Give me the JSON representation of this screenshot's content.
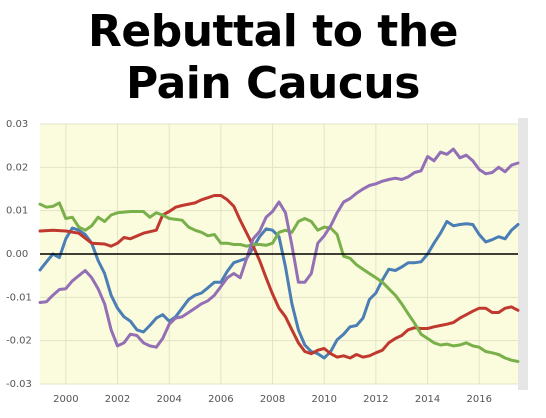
{
  "title_lines": [
    "Rebuttal to the",
    "Pain Caucus"
  ],
  "colors": {
    "plot_bg": "#fbfbdd",
    "grid": "#e3e3c8",
    "zero_line": "#000000",
    "right_bar": "#e6e6e6"
  },
  "chart_data": {
    "type": "line",
    "title": "Rebuttal to the Pain Caucus",
    "xlabel": "",
    "ylabel": "",
    "xlim": [
      1999.0,
      2017.5
    ],
    "ylim": [
      -0.03,
      0.03
    ],
    "x_ticks": [
      2000,
      2002,
      2004,
      2006,
      2008,
      2010,
      2012,
      2014,
      2016
    ],
    "y_ticks": [
      -0.03,
      -0.02,
      -0.01,
      0.0,
      0.01,
      0.02,
      0.03
    ],
    "y_tick_labels": [
      "-0.03",
      "-0.02",
      "-0.01",
      "0.00",
      "0.01",
      "0.02",
      "0.03"
    ],
    "zero_line": true,
    "grid": true,
    "series": [
      {
        "color": "#4a7eb5",
        "points": [
          [
            1999.0,
            -0.0037
          ],
          [
            1999.25,
            -0.0018
          ],
          [
            1999.5,
            0.0
          ],
          [
            1999.75,
            -0.0008
          ],
          [
            2000.0,
            0.0035
          ],
          [
            2000.25,
            0.006
          ],
          [
            2000.5,
            0.0055
          ],
          [
            2000.75,
            0.0045
          ],
          [
            2001.0,
            0.0025
          ],
          [
            2001.25,
            -0.0015
          ],
          [
            2001.5,
            -0.0045
          ],
          [
            2001.75,
            -0.0095
          ],
          [
            2002.0,
            -0.0125
          ],
          [
            2002.25,
            -0.0145
          ],
          [
            2002.5,
            -0.0155
          ],
          [
            2002.75,
            -0.0175
          ],
          [
            2003.0,
            -0.018
          ],
          [
            2003.25,
            -0.0165
          ],
          [
            2003.5,
            -0.0148
          ],
          [
            2003.75,
            -0.014
          ],
          [
            2004.0,
            -0.0155
          ],
          [
            2004.25,
            -0.0145
          ],
          [
            2004.5,
            -0.0125
          ],
          [
            2004.75,
            -0.0105
          ],
          [
            2005.0,
            -0.0095
          ],
          [
            2005.25,
            -0.009
          ],
          [
            2005.5,
            -0.0078
          ],
          [
            2005.75,
            -0.0065
          ],
          [
            2006.0,
            -0.0065
          ],
          [
            2006.25,
            -0.004
          ],
          [
            2006.5,
            -0.002
          ],
          [
            2006.75,
            -0.0015
          ],
          [
            2007.0,
            -0.001
          ],
          [
            2007.25,
            0.0015
          ],
          [
            2007.5,
            0.004
          ],
          [
            2007.75,
            0.0058
          ],
          [
            2008.0,
            0.0055
          ],
          [
            2008.25,
            0.004
          ],
          [
            2008.5,
            -0.003
          ],
          [
            2008.75,
            -0.0115
          ],
          [
            2009.0,
            -0.0175
          ],
          [
            2009.25,
            -0.021
          ],
          [
            2009.5,
            -0.0225
          ],
          [
            2009.75,
            -0.023
          ],
          [
            2010.0,
            -0.024
          ],
          [
            2010.25,
            -0.0225
          ],
          [
            2010.5,
            -0.0198
          ],
          [
            2010.75,
            -0.0185
          ],
          [
            2011.0,
            -0.0168
          ],
          [
            2011.25,
            -0.0165
          ],
          [
            2011.5,
            -0.0148
          ],
          [
            2011.75,
            -0.0105
          ],
          [
            2012.0,
            -0.009
          ],
          [
            2012.25,
            -0.006
          ],
          [
            2012.5,
            -0.0035
          ],
          [
            2012.75,
            -0.0038
          ],
          [
            2013.0,
            -0.003
          ],
          [
            2013.25,
            -0.002
          ],
          [
            2013.5,
            -0.002
          ],
          [
            2013.75,
            -0.0018
          ],
          [
            2014.0,
            0.0
          ],
          [
            2014.25,
            0.0025
          ],
          [
            2014.5,
            0.0048
          ],
          [
            2014.75,
            0.0075
          ],
          [
            2015.0,
            0.0065
          ],
          [
            2015.25,
            0.0068
          ],
          [
            2015.5,
            0.007
          ],
          [
            2015.75,
            0.0068
          ],
          [
            2016.0,
            0.0045
          ],
          [
            2016.25,
            0.0028
          ],
          [
            2016.5,
            0.0033
          ],
          [
            2016.75,
            0.004
          ],
          [
            2017.0,
            0.0035
          ],
          [
            2017.25,
            0.0055
          ],
          [
            2017.5,
            0.0068
          ]
        ]
      },
      {
        "color": "#c0392f",
        "points": [
          [
            1999.0,
            0.0053
          ],
          [
            1999.5,
            0.0055
          ],
          [
            2000.0,
            0.0053
          ],
          [
            2000.5,
            0.0048
          ],
          [
            2001.0,
            0.0025
          ],
          [
            2001.5,
            0.0023
          ],
          [
            2001.75,
            0.0018
          ],
          [
            2002.0,
            0.0025
          ],
          [
            2002.25,
            0.0038
          ],
          [
            2002.5,
            0.0035
          ],
          [
            2003.0,
            0.0048
          ],
          [
            2003.5,
            0.0055
          ],
          [
            2003.75,
            0.009
          ],
          [
            2004.0,
            0.0098
          ],
          [
            2004.25,
            0.0108
          ],
          [
            2004.5,
            0.0112
          ],
          [
            2005.0,
            0.0118
          ],
          [
            2005.25,
            0.0125
          ],
          [
            2005.5,
            0.013
          ],
          [
            2005.75,
            0.0135
          ],
          [
            2006.0,
            0.0135
          ],
          [
            2006.25,
            0.0125
          ],
          [
            2006.5,
            0.011
          ],
          [
            2006.75,
            0.0078
          ],
          [
            2007.0,
            0.0048
          ],
          [
            2007.25,
            0.0018
          ],
          [
            2007.5,
            -0.0015
          ],
          [
            2007.75,
            -0.0055
          ],
          [
            2008.0,
            -0.0092
          ],
          [
            2008.25,
            -0.0125
          ],
          [
            2008.5,
            -0.0145
          ],
          [
            2008.75,
            -0.0175
          ],
          [
            2009.0,
            -0.0205
          ],
          [
            2009.25,
            -0.0225
          ],
          [
            2009.5,
            -0.023
          ],
          [
            2009.75,
            -0.0222
          ],
          [
            2010.0,
            -0.0218
          ],
          [
            2010.25,
            -0.023
          ],
          [
            2010.5,
            -0.0238
          ],
          [
            2010.75,
            -0.0235
          ],
          [
            2011.0,
            -0.024
          ],
          [
            2011.25,
            -0.0232
          ],
          [
            2011.5,
            -0.0238
          ],
          [
            2011.75,
            -0.0235
          ],
          [
            2012.0,
            -0.0228
          ],
          [
            2012.25,
            -0.0222
          ],
          [
            2012.5,
            -0.0205
          ],
          [
            2012.75,
            -0.0195
          ],
          [
            2013.0,
            -0.0188
          ],
          [
            2013.25,
            -0.0175
          ],
          [
            2013.5,
            -0.017
          ],
          [
            2013.75,
            -0.0172
          ],
          [
            2014.0,
            -0.0172
          ],
          [
            2014.25,
            -0.0168
          ],
          [
            2014.5,
            -0.0165
          ],
          [
            2014.75,
            -0.0162
          ],
          [
            2015.0,
            -0.0158
          ],
          [
            2015.25,
            -0.0148
          ],
          [
            2015.5,
            -0.014
          ],
          [
            2015.75,
            -0.0132
          ],
          [
            2016.0,
            -0.0125
          ],
          [
            2016.25,
            -0.0125
          ],
          [
            2016.5,
            -0.0135
          ],
          [
            2016.75,
            -0.0135
          ],
          [
            2017.0,
            -0.0125
          ],
          [
            2017.25,
            -0.0122
          ],
          [
            2017.5,
            -0.013
          ]
        ]
      },
      {
        "color": "#79b04a",
        "points": [
          [
            1999.0,
            0.0115
          ],
          [
            1999.25,
            0.0108
          ],
          [
            1999.5,
            0.011
          ],
          [
            1999.75,
            0.0118
          ],
          [
            2000.0,
            0.0082
          ],
          [
            2000.25,
            0.0085
          ],
          [
            2000.5,
            0.0062
          ],
          [
            2000.75,
            0.0055
          ],
          [
            2001.0,
            0.0065
          ],
          [
            2001.25,
            0.0085
          ],
          [
            2001.5,
            0.0075
          ],
          [
            2001.75,
            0.009
          ],
          [
            2002.0,
            0.0095
          ],
          [
            2002.5,
            0.0098
          ],
          [
            2003.0,
            0.0098
          ],
          [
            2003.25,
            0.0085
          ],
          [
            2003.5,
            0.0095
          ],
          [
            2003.75,
            0.009
          ],
          [
            2004.0,
            0.0082
          ],
          [
            2004.5,
            0.0078
          ],
          [
            2004.75,
            0.0062
          ],
          [
            2005.0,
            0.0055
          ],
          [
            2005.25,
            0.005
          ],
          [
            2005.5,
            0.0042
          ],
          [
            2005.75,
            0.0045
          ],
          [
            2006.0,
            0.0025
          ],
          [
            2006.25,
            0.0025
          ],
          [
            2006.5,
            0.0022
          ],
          [
            2006.75,
            0.0022
          ],
          [
            2007.0,
            0.0018
          ],
          [
            2007.25,
            0.0022
          ],
          [
            2007.5,
            0.0022
          ],
          [
            2007.75,
            0.002
          ],
          [
            2008.0,
            0.0025
          ],
          [
            2008.25,
            0.005
          ],
          [
            2008.5,
            0.0055
          ],
          [
            2008.75,
            0.005
          ],
          [
            2009.0,
            0.0075
          ],
          [
            2009.25,
            0.0082
          ],
          [
            2009.5,
            0.0075
          ],
          [
            2009.75,
            0.0055
          ],
          [
            2010.0,
            0.0062
          ],
          [
            2010.25,
            0.006
          ],
          [
            2010.5,
            0.0045
          ],
          [
            2010.75,
            -0.0005
          ],
          [
            2011.0,
            -0.001
          ],
          [
            2011.25,
            -0.0025
          ],
          [
            2011.5,
            -0.0035
          ],
          [
            2011.75,
            -0.0045
          ],
          [
            2012.0,
            -0.0055
          ],
          [
            2012.25,
            -0.0065
          ],
          [
            2012.5,
            -0.008
          ],
          [
            2012.75,
            -0.0095
          ],
          [
            2013.0,
            -0.0115
          ],
          [
            2013.25,
            -0.0138
          ],
          [
            2013.5,
            -0.016
          ],
          [
            2013.75,
            -0.0185
          ],
          [
            2014.0,
            -0.0195
          ],
          [
            2014.25,
            -0.0205
          ],
          [
            2014.5,
            -0.021
          ],
          [
            2014.75,
            -0.0208
          ],
          [
            2015.0,
            -0.0212
          ],
          [
            2015.25,
            -0.021
          ],
          [
            2015.5,
            -0.0205
          ],
          [
            2015.75,
            -0.0212
          ],
          [
            2016.0,
            -0.0215
          ],
          [
            2016.25,
            -0.0225
          ],
          [
            2016.5,
            -0.0228
          ],
          [
            2016.75,
            -0.0232
          ],
          [
            2017.0,
            -0.024
          ],
          [
            2017.25,
            -0.0245
          ],
          [
            2017.5,
            -0.0248
          ]
        ]
      },
      {
        "color": "#9370b5",
        "points": [
          [
            1999.0,
            -0.0112
          ],
          [
            1999.25,
            -0.011
          ],
          [
            1999.5,
            -0.0095
          ],
          [
            1999.75,
            -0.0082
          ],
          [
            2000.0,
            -0.008
          ],
          [
            2000.25,
            -0.0062
          ],
          [
            2000.5,
            -0.005
          ],
          [
            2000.75,
            -0.0038
          ],
          [
            2001.0,
            -0.0055
          ],
          [
            2001.25,
            -0.008
          ],
          [
            2001.5,
            -0.0115
          ],
          [
            2001.75,
            -0.0175
          ],
          [
            2002.0,
            -0.0212
          ],
          [
            2002.25,
            -0.0205
          ],
          [
            2002.5,
            -0.0185
          ],
          [
            2002.75,
            -0.0188
          ],
          [
            2003.0,
            -0.0205
          ],
          [
            2003.25,
            -0.0212
          ],
          [
            2003.5,
            -0.0215
          ],
          [
            2003.75,
            -0.0195
          ],
          [
            2004.0,
            -0.0162
          ],
          [
            2004.25,
            -0.0148
          ],
          [
            2004.5,
            -0.0145
          ],
          [
            2004.75,
            -0.0135
          ],
          [
            2005.0,
            -0.0125
          ],
          [
            2005.25,
            -0.0115
          ],
          [
            2005.5,
            -0.0108
          ],
          [
            2005.75,
            -0.0095
          ],
          [
            2006.0,
            -0.0075
          ],
          [
            2006.25,
            -0.0055
          ],
          [
            2006.5,
            -0.0045
          ],
          [
            2006.75,
            -0.0055
          ],
          [
            2007.0,
            -0.001
          ],
          [
            2007.25,
            0.0035
          ],
          [
            2007.5,
            0.0052
          ],
          [
            2007.75,
            0.0085
          ],
          [
            2008.0,
            0.0098
          ],
          [
            2008.25,
            0.012
          ],
          [
            2008.5,
            0.0095
          ],
          [
            2008.75,
            0.002
          ],
          [
            2009.0,
            -0.0065
          ],
          [
            2009.25,
            -0.0065
          ],
          [
            2009.5,
            -0.0045
          ],
          [
            2009.75,
            0.0025
          ],
          [
            2010.0,
            0.0042
          ],
          [
            2010.25,
            0.0065
          ],
          [
            2010.5,
            0.0095
          ],
          [
            2010.75,
            0.012
          ],
          [
            2011.0,
            0.0128
          ],
          [
            2011.25,
            0.014
          ],
          [
            2011.5,
            0.015
          ],
          [
            2011.75,
            0.0158
          ],
          [
            2012.0,
            0.0162
          ],
          [
            2012.25,
            0.0168
          ],
          [
            2012.5,
            0.0172
          ],
          [
            2012.75,
            0.0175
          ],
          [
            2013.0,
            0.0172
          ],
          [
            2013.25,
            0.0178
          ],
          [
            2013.5,
            0.0188
          ],
          [
            2013.75,
            0.0192
          ],
          [
            2014.0,
            0.0225
          ],
          [
            2014.25,
            0.0215
          ],
          [
            2014.5,
            0.0235
          ],
          [
            2014.75,
            0.023
          ],
          [
            2015.0,
            0.0242
          ],
          [
            2015.25,
            0.0222
          ],
          [
            2015.5,
            0.0228
          ],
          [
            2015.75,
            0.0215
          ],
          [
            2016.0,
            0.0195
          ],
          [
            2016.25,
            0.0185
          ],
          [
            2016.5,
            0.0188
          ],
          [
            2016.75,
            0.02
          ],
          [
            2017.0,
            0.019
          ],
          [
            2017.25,
            0.0205
          ],
          [
            2017.5,
            0.021
          ]
        ]
      }
    ]
  }
}
